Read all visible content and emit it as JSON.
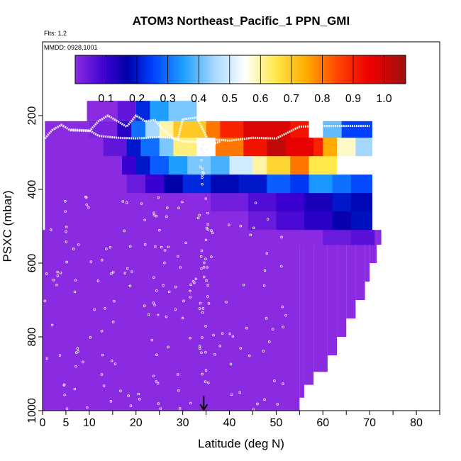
{
  "chart_data": {
    "type": "heatmap",
    "title": "ATOM3 Northeast_Pacific_1 PPN_GMI",
    "flights_note": "Flts: 1,2",
    "date_note": "MMDD: 0928,1001",
    "xlabel": "Latitude (deg N)",
    "ylabel": "PSXC (mbar)",
    "xlim": [
      0,
      85
    ],
    "ylim": [
      1000,
      0
    ],
    "x_ticks": [
      0,
      5,
      10,
      20,
      30,
      40,
      50,
      60,
      70,
      80
    ],
    "y_ticks": [
      200,
      400,
      600,
      800,
      1000
    ],
    "colorbar": {
      "range": [
        0,
        1.07
      ],
      "ticks": [
        0.1,
        0.2,
        0.3,
        0.4,
        0.5,
        0.6,
        0.7,
        0.8,
        0.9,
        1.0
      ],
      "tick_labels": [
        "0.1",
        "0.2",
        "0.3",
        "0.4",
        "0.5",
        "0.6",
        "0.7",
        "0.8",
        "0.9",
        "1.0"
      ],
      "stops": [
        {
          "v": 0.0,
          "color": "#8a2be2"
        },
        {
          "v": 0.1,
          "color": "#3a00d0"
        },
        {
          "v": 0.17,
          "color": "#0000a8"
        },
        {
          "v": 0.25,
          "color": "#0040ff"
        },
        {
          "v": 0.35,
          "color": "#1e9fff"
        },
        {
          "v": 0.45,
          "color": "#a6d8ff"
        },
        {
          "v": 0.55,
          "color": "#ffffff"
        },
        {
          "v": 0.65,
          "color": "#ffe84a"
        },
        {
          "v": 0.75,
          "color": "#ffaa00"
        },
        {
          "v": 0.85,
          "color": "#ff4400"
        },
        {
          "v": 0.95,
          "color": "#ee0000"
        },
        {
          "v": 1.07,
          "color": "#a01010"
        }
      ]
    },
    "column_bottoms": [
      {
        "lat0": 0,
        "lat1": 55,
        "p": 1000
      },
      {
        "lat0": 55,
        "lat1": 56,
        "p": 965
      },
      {
        "lat0": 56,
        "lat1": 58,
        "p": 930
      },
      {
        "lat0": 58,
        "lat1": 61,
        "p": 895
      },
      {
        "lat0": 61,
        "lat1": 63,
        "p": 850
      },
      {
        "lat0": 63,
        "lat1": 65,
        "p": 800
      },
      {
        "lat0": 65,
        "lat1": 67,
        "p": 750
      },
      {
        "lat0": 67,
        "lat1": 69,
        "p": 700
      },
      {
        "lat0": 69,
        "lat1": 70,
        "p": 650
      },
      {
        "lat0": 70,
        "lat1": 71.5,
        "p": 600
      },
      {
        "lat0": 71.5,
        "lat1": 72.5,
        "p": 550
      }
    ],
    "upper_bands": [
      {
        "lat0": 0.5,
        "lat1": 70.5,
        "p0": 215,
        "p1": 260,
        "cells": [
          [
            0.5,
            10,
            0.0
          ],
          [
            10,
            16,
            0.02
          ],
          [
            16,
            19,
            0.12
          ],
          [
            19,
            22,
            0.3
          ],
          [
            22,
            25,
            0.45
          ],
          [
            25,
            28,
            0.6
          ],
          [
            28,
            35,
            0.7
          ],
          [
            35,
            38,
            0.8
          ],
          [
            38,
            43,
            0.9
          ],
          [
            43,
            53,
            0.98
          ],
          [
            53,
            57,
            0.92
          ],
          [
            57,
            60,
            0.55
          ],
          [
            60,
            64,
            0.4
          ],
          [
            64,
            70.5,
            0.25
          ]
        ]
      },
      {
        "lat0": 0.5,
        "lat1": 70.5,
        "p0": 260,
        "p1": 310,
        "cells": [
          [
            0.5,
            13,
            0.0
          ],
          [
            13,
            18,
            0.05
          ],
          [
            18,
            21,
            0.2
          ],
          [
            21,
            25,
            0.3
          ],
          [
            25,
            28,
            0.42
          ],
          [
            28,
            33,
            0.62
          ],
          [
            33,
            37,
            0.55
          ],
          [
            37,
            43,
            0.8
          ],
          [
            43,
            48,
            0.92
          ],
          [
            48,
            52,
            1.02
          ],
          [
            52,
            58,
            0.96
          ],
          [
            58,
            60,
            0.9
          ],
          [
            60,
            63,
            0.75
          ],
          [
            63,
            67,
            0.58
          ],
          [
            67,
            70.5,
            0.45
          ]
        ]
      },
      {
        "lat0": 0.5,
        "lat1": 70.5,
        "p0": 310,
        "p1": 360,
        "cells": [
          [
            0.5,
            17,
            0.0
          ],
          [
            17,
            20,
            0.1
          ],
          [
            20,
            23,
            0.2
          ],
          [
            23,
            27,
            0.28
          ],
          [
            27,
            31,
            0.35
          ],
          [
            31,
            36,
            0.42
          ],
          [
            36,
            40,
            0.38
          ],
          [
            40,
            45,
            0.5
          ],
          [
            45,
            48,
            0.6
          ],
          [
            48,
            53,
            0.68
          ],
          [
            53,
            57,
            0.8
          ],
          [
            57,
            63,
            0.65
          ],
          [
            63,
            70.5,
            0.55
          ]
        ]
      },
      {
        "lat0": 0.5,
        "lat1": 70.5,
        "p0": 360,
        "p1": 410,
        "cells": [
          [
            0.5,
            18,
            0.0
          ],
          [
            18,
            22,
            0.04
          ],
          [
            22,
            26,
            0.1
          ],
          [
            26,
            30,
            0.17
          ],
          [
            30,
            36,
            0.22
          ],
          [
            36,
            42,
            0.18
          ],
          [
            42,
            48,
            0.2
          ],
          [
            48,
            53,
            0.28
          ],
          [
            53,
            57,
            0.24
          ],
          [
            57,
            62,
            0.34
          ],
          [
            62,
            66,
            0.3
          ],
          [
            66,
            70.5,
            0.26
          ]
        ]
      },
      {
        "lat0": 0.5,
        "lat1": 70.5,
        "p0": 410,
        "p1": 460,
        "cells": [
          [
            0.5,
            36,
            0.0
          ],
          [
            36,
            44,
            0.03
          ],
          [
            44,
            50,
            0.07
          ],
          [
            50,
            56,
            0.1
          ],
          [
            56,
            62,
            0.14
          ],
          [
            62,
            66,
            0.2
          ],
          [
            66,
            70.5,
            0.18
          ]
        ]
      },
      {
        "lat0": 0.5,
        "lat1": 70.5,
        "p0": 460,
        "p1": 510,
        "cells": [
          [
            0.5,
            44,
            0.0
          ],
          [
            44,
            50,
            0.04
          ],
          [
            50,
            56,
            0.08
          ],
          [
            56,
            62,
            0.12
          ],
          [
            62,
            66,
            0.16
          ],
          [
            66,
            70.5,
            0.19
          ]
        ]
      },
      {
        "lat0": 0.5,
        "lat1": 71,
        "p0": 510,
        "p1": 550,
        "cells": [
          [
            0.5,
            60,
            0.0
          ],
          [
            60,
            66,
            0.04
          ],
          [
            66,
            71,
            0.06
          ]
        ]
      }
    ],
    "top_patch": [
      {
        "lat0": 9.5,
        "lat1": 16,
        "p0": 160,
        "p1": 215,
        "v": 0.0
      },
      {
        "lat0": 16,
        "lat1": 20,
        "p0": 160,
        "p1": 215,
        "v": 0.05
      },
      {
        "lat0": 20,
        "lat1": 23,
        "p0": 160,
        "p1": 215,
        "v": 0.22
      },
      {
        "lat0": 23,
        "lat1": 27,
        "p0": 160,
        "p1": 215,
        "v": 0.35
      },
      {
        "lat0": 27,
        "lat1": 33,
        "p0": 160,
        "p1": 215,
        "v": 0.42
      }
    ],
    "flight_track_lines": [
      [
        [
          0.5,
          262
        ],
        [
          2,
          240
        ],
        [
          4,
          225
        ],
        [
          6,
          240
        ],
        [
          10,
          242
        ],
        [
          12,
          215
        ],
        [
          14,
          200
        ],
        [
          16,
          215
        ],
        [
          18,
          230
        ],
        [
          20,
          200
        ],
        [
          22,
          215
        ],
        [
          24,
          212
        ],
        [
          26,
          240
        ],
        [
          28,
          262
        ],
        [
          30,
          270
        ],
        [
          33,
          272
        ],
        [
          37,
          265
        ],
        [
          40,
          268
        ],
        [
          45,
          260
        ],
        [
          50,
          262
        ],
        [
          55,
          230
        ],
        [
          60,
          228
        ],
        [
          70,
          228
        ]
      ],
      [
        [
          6,
          238
        ],
        [
          10,
          240
        ],
        [
          12,
          255
        ],
        [
          16,
          260
        ],
        [
          20,
          262
        ],
        [
          25,
          258
        ],
        [
          29,
          262
        ],
        [
          30,
          210
        ],
        [
          33,
          205
        ],
        [
          36,
          280
        ],
        [
          38,
          270
        ]
      ]
    ],
    "arrow_lat": 34.5
  }
}
